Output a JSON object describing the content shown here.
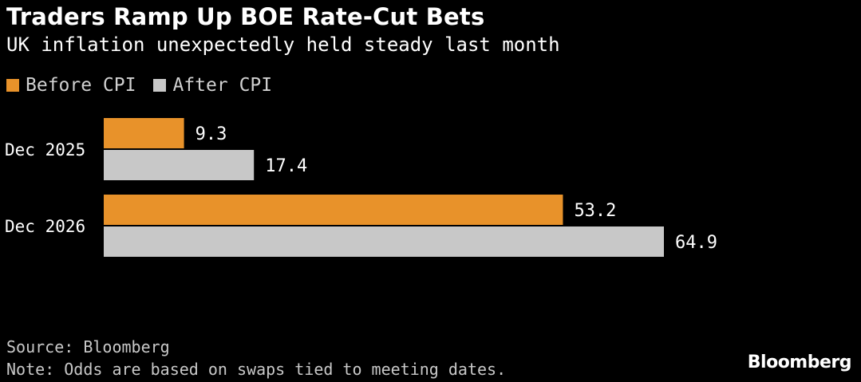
{
  "title": "Traders Ramp Up BOE Rate-Cut Bets",
  "subtitle": "UK inflation unexpectedly held steady last month",
  "colors": {
    "before": "#e8922a",
    "after": "#c8c8c8"
  },
  "chart_data": {
    "type": "bar",
    "orientation": "horizontal",
    "categories": [
      "Dec 2025",
      "Dec 2026"
    ],
    "series": [
      {
        "name": "Before CPI",
        "values": [
          9.3,
          53.2
        ]
      },
      {
        "name": "After CPI",
        "values": [
          17.4,
          64.9
        ]
      }
    ],
    "title": "Traders Ramp Up BOE Rate-Cut Bets",
    "subtitle": "UK inflation unexpectedly held steady last month",
    "xlabel": "",
    "ylabel": "",
    "xlim": [
      0,
      65
    ],
    "grid": false,
    "legend": "top-left"
  },
  "footer": {
    "source": "Source: Bloomberg",
    "note": "Note: Odds are based on swaps tied to meeting dates."
  },
  "brand": "Bloomberg"
}
